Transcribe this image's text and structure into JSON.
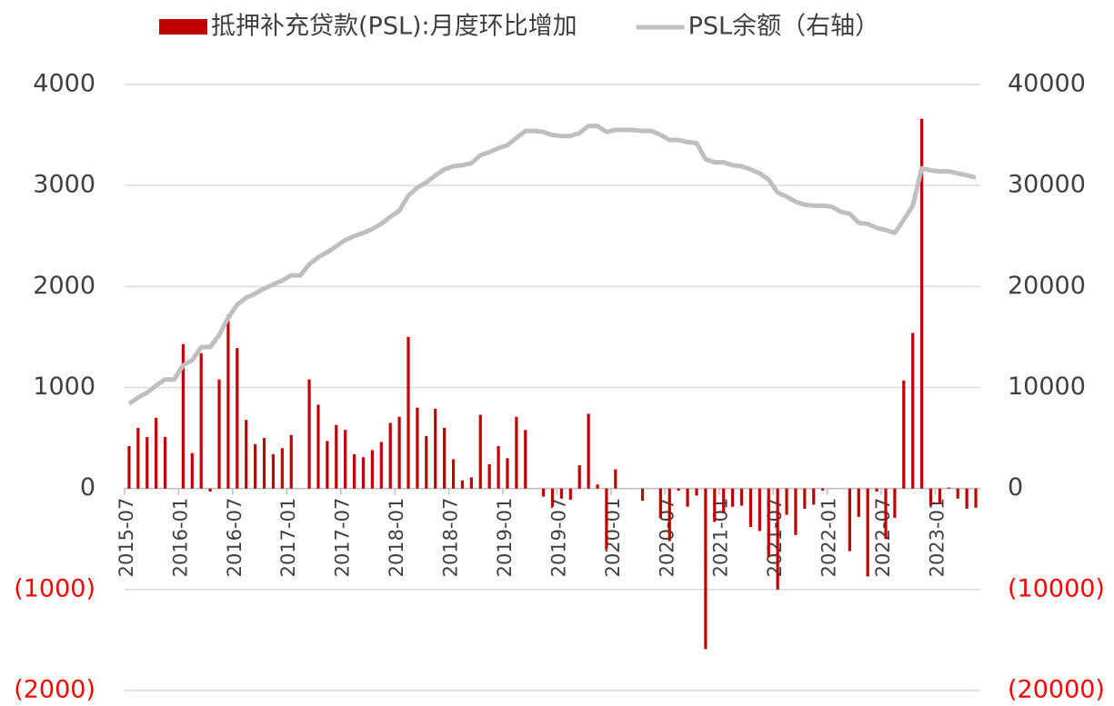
{
  "chart_data": {
    "type": "bar-line",
    "legend": "top",
    "categories": [
      "2015-07",
      null,
      null,
      null,
      null,
      null,
      "2016-01",
      null,
      null,
      null,
      null,
      null,
      "2016-07",
      null,
      null,
      null,
      null,
      null,
      "2017-01",
      null,
      null,
      null,
      null,
      null,
      "2017-07",
      null,
      null,
      null,
      null,
      null,
      "2018-01",
      null,
      null,
      null,
      null,
      null,
      "2018-07",
      null,
      null,
      null,
      null,
      null,
      "2019-01",
      null,
      null,
      null,
      null,
      null,
      "2019-07",
      null,
      null,
      null,
      null,
      null,
      "2020-01",
      null,
      null,
      null,
      null,
      null,
      "2020-07",
      null,
      null,
      null,
      null,
      null,
      "2021-01",
      null,
      null,
      null,
      null,
      null,
      "2021-07",
      null,
      null,
      null,
      null,
      null,
      "2022-01",
      null,
      null,
      null,
      null,
      null,
      "2022-07",
      null,
      null,
      null,
      null,
      null,
      "2023-01",
      null,
      null,
      null,
      null
    ],
    "series": [
      {
        "name": "抵押补充贷款(PSL):月度环比增加",
        "type": "bar",
        "color": "#c00000",
        "values": [
          420,
          600,
          510,
          700,
          510,
          0,
          1430,
          350,
          1340,
          -30,
          1080,
          1720,
          1390,
          680,
          440,
          500,
          340,
          400,
          530,
          0,
          1080,
          830,
          470,
          630,
          580,
          340,
          310,
          380,
          460,
          650,
          710,
          1500,
          800,
          520,
          790,
          600,
          290,
          80,
          110,
          730,
          240,
          420,
          300,
          710,
          580,
          0,
          -80,
          -180,
          -100,
          -110,
          230,
          740,
          40,
          -600,
          190,
          0,
          0,
          -120,
          0,
          -290,
          -520,
          -20,
          -180,
          -70,
          -1590,
          -330,
          -240,
          -180,
          -170,
          -380,
          -420,
          -680,
          -1000,
          -260,
          -460,
          -200,
          -160,
          -20,
          0,
          0,
          -620,
          -280,
          -870,
          -30,
          -500,
          -290,
          1070,
          1540,
          3660,
          -170,
          -150,
          10,
          -100,
          -200,
          -190
        ]
      },
      {
        "name": "PSL余额（右轴）",
        "type": "line",
        "axis": "y2",
        "color": "#bfbfbf",
        "values": [
          8400,
          9000,
          9500,
          10200,
          10800,
          10800,
          12200,
          12700,
          14000,
          14000,
          15200,
          16900,
          18200,
          18900,
          19300,
          19800,
          20200,
          20600,
          21100,
          21100,
          22200,
          22900,
          23400,
          24000,
          24600,
          25000,
          25300,
          25700,
          26200,
          26900,
          27500,
          29000,
          29800,
          30300,
          31000,
          31600,
          31900,
          32000,
          32200,
          33000,
          33300,
          33700,
          34000,
          34700,
          35400,
          35400,
          35300,
          35000,
          34900,
          34900,
          35200,
          35900,
          35900,
          35300,
          35500,
          35500,
          35500,
          35400,
          35400,
          35000,
          34500,
          34500,
          34300,
          34200,
          32600,
          32300,
          32300,
          32000,
          31900,
          31600,
          31200,
          30600,
          29300,
          28900,
          28400,
          28100,
          28000,
          28000,
          27900,
          27400,
          27200,
          26300,
          26200,
          25800,
          25600,
          25300,
          26600,
          28000,
          31700,
          31500,
          31400,
          31400,
          31200,
          31000,
          30800
        ]
      }
    ],
    "ylim": [
      -2000,
      4000
    ],
    "yticks": [
      {
        "value": -2000,
        "label": "(2000)"
      },
      {
        "value": -1000,
        "label": "(1000)"
      },
      0,
      1000,
      2000,
      3000,
      4000
    ],
    "y2lim": [
      -20000,
      40000
    ],
    "y2ticks": [
      {
        "value": -20000,
        "label": "(20000)"
      },
      {
        "value": -10000,
        "label": "(10000)"
      },
      0,
      10000,
      20000,
      30000,
      40000
    ],
    "negative_tick_color": "#ff0000",
    "grid": true
  }
}
